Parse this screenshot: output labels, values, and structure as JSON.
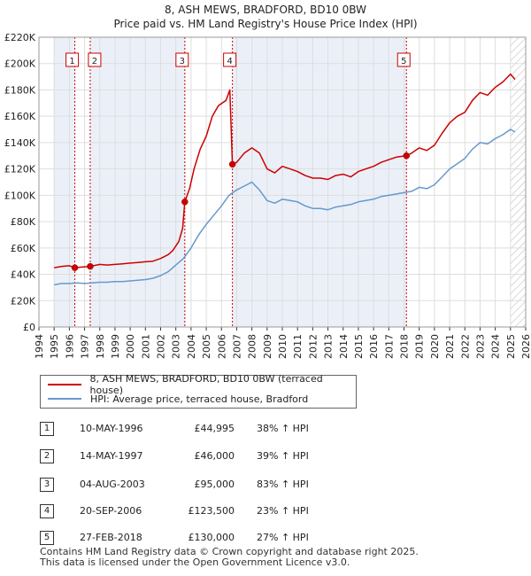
{
  "chart_data": {
    "type": "line",
    "title": "8, ASH MEWS, BRADFORD, BD10 0BW",
    "subtitle": "Price paid vs. HM Land Registry's House Price Index (HPI)",
    "xlim": [
      1994,
      2026
    ],
    "ylim": [
      0,
      220000
    ],
    "yticks": [
      0,
      20000,
      40000,
      60000,
      80000,
      100000,
      120000,
      140000,
      160000,
      180000,
      200000,
      220000
    ],
    "ytick_labels": [
      "£0",
      "£20K",
      "£40K",
      "£60K",
      "£80K",
      "£100K",
      "£120K",
      "£140K",
      "£160K",
      "£180K",
      "£200K",
      "£220K"
    ],
    "xticks": [
      "1994",
      "1995",
      "1996",
      "1997",
      "1998",
      "1999",
      "2000",
      "2001",
      "2002",
      "2003",
      "2004",
      "2005",
      "2006",
      "2007",
      "2008",
      "2009",
      "2010",
      "2011",
      "2012",
      "2013",
      "2014",
      "2015",
      "2016",
      "2017",
      "2018",
      "2019",
      "2020",
      "2021",
      "2022",
      "2023",
      "2024",
      "2025",
      "2026"
    ],
    "shaded_regions": [
      [
        1995.0,
        1996.36
      ],
      [
        1997.37,
        2003.59
      ],
      [
        2006.72,
        2018.16
      ]
    ],
    "series": [
      {
        "name": "8, ASH MEWS, BRADFORD, BD10 0BW (terraced house)",
        "color": "#cc0000",
        "points": [
          [
            1995.0,
            45000
          ],
          [
            1995.5,
            46000
          ],
          [
            1996.0,
            46500
          ],
          [
            1996.36,
            44995
          ],
          [
            1996.8,
            45500
          ],
          [
            1997.37,
            46000
          ],
          [
            1998.0,
            47500
          ],
          [
            1998.5,
            47000
          ],
          [
            1999.0,
            47500
          ],
          [
            1999.5,
            48000
          ],
          [
            2000.0,
            48500
          ],
          [
            2000.5,
            49000
          ],
          [
            2001.0,
            49500
          ],
          [
            2001.5,
            50000
          ],
          [
            2002.0,
            52000
          ],
          [
            2002.5,
            55000
          ],
          [
            2002.8,
            58000
          ],
          [
            2003.2,
            65000
          ],
          [
            2003.45,
            75000
          ],
          [
            2003.59,
            95000
          ],
          [
            2003.9,
            105000
          ],
          [
            2004.2,
            120000
          ],
          [
            2004.6,
            135000
          ],
          [
            2005.0,
            145000
          ],
          [
            2005.4,
            160000
          ],
          [
            2005.8,
            168000
          ],
          [
            2006.3,
            172000
          ],
          [
            2006.55,
            180000
          ],
          [
            2006.72,
            123500
          ],
          [
            2007.0,
            125000
          ],
          [
            2007.5,
            132000
          ],
          [
            2008.0,
            136000
          ],
          [
            2008.5,
            132000
          ],
          [
            2009.0,
            120000
          ],
          [
            2009.5,
            117000
          ],
          [
            2010.0,
            122000
          ],
          [
            2010.5,
            120000
          ],
          [
            2011.0,
            118000
          ],
          [
            2011.5,
            115000
          ],
          [
            2012.0,
            113000
          ],
          [
            2012.5,
            113000
          ],
          [
            2013.0,
            112000
          ],
          [
            2013.5,
            115000
          ],
          [
            2014.0,
            116000
          ],
          [
            2014.5,
            114000
          ],
          [
            2015.0,
            118000
          ],
          [
            2015.5,
            120000
          ],
          [
            2016.0,
            122000
          ],
          [
            2016.5,
            125000
          ],
          [
            2017.0,
            127000
          ],
          [
            2017.5,
            129000
          ],
          [
            2018.16,
            130000
          ],
          [
            2018.5,
            132000
          ],
          [
            2019.0,
            136000
          ],
          [
            2019.5,
            134000
          ],
          [
            2020.0,
            138000
          ],
          [
            2020.5,
            147000
          ],
          [
            2021.0,
            155000
          ],
          [
            2021.5,
            160000
          ],
          [
            2022.0,
            163000
          ],
          [
            2022.5,
            172000
          ],
          [
            2023.0,
            178000
          ],
          [
            2023.5,
            176000
          ],
          [
            2024.0,
            182000
          ],
          [
            2024.5,
            186000
          ],
          [
            2025.0,
            192000
          ],
          [
            2025.3,
            188000
          ]
        ]
      },
      {
        "name": "HPI: Average price, terraced house, Bradford",
        "color": "#6699cc",
        "points": [
          [
            1995.0,
            32000
          ],
          [
            1995.5,
            33000
          ],
          [
            1996.0,
            33000
          ],
          [
            1996.5,
            33500
          ],
          [
            1997.0,
            33000
          ],
          [
            1997.5,
            33500
          ],
          [
            1998.0,
            34000
          ],
          [
            1998.5,
            34000
          ],
          [
            1999.0,
            34500
          ],
          [
            1999.5,
            34500
          ],
          [
            2000.0,
            35000
          ],
          [
            2000.5,
            35500
          ],
          [
            2001.0,
            36000
          ],
          [
            2001.5,
            37000
          ],
          [
            2002.0,
            39000
          ],
          [
            2002.5,
            42000
          ],
          [
            2003.0,
            47000
          ],
          [
            2003.5,
            52000
          ],
          [
            2004.0,
            60000
          ],
          [
            2004.5,
            70000
          ],
          [
            2005.0,
            78000
          ],
          [
            2005.5,
            85000
          ],
          [
            2006.0,
            92000
          ],
          [
            2006.5,
            100000
          ],
          [
            2007.0,
            104000
          ],
          [
            2007.5,
            107000
          ],
          [
            2008.0,
            110000
          ],
          [
            2008.5,
            104000
          ],
          [
            2009.0,
            96000
          ],
          [
            2009.5,
            94000
          ],
          [
            2010.0,
            97000
          ],
          [
            2010.5,
            96000
          ],
          [
            2011.0,
            95000
          ],
          [
            2011.5,
            92000
          ],
          [
            2012.0,
            90000
          ],
          [
            2012.5,
            90000
          ],
          [
            2013.0,
            89000
          ],
          [
            2013.5,
            91000
          ],
          [
            2014.0,
            92000
          ],
          [
            2014.5,
            93000
          ],
          [
            2015.0,
            95000
          ],
          [
            2015.5,
            96000
          ],
          [
            2016.0,
            97000
          ],
          [
            2016.5,
            99000
          ],
          [
            2017.0,
            100000
          ],
          [
            2017.5,
            101000
          ],
          [
            2018.0,
            102000
          ],
          [
            2018.5,
            103000
          ],
          [
            2019.0,
            106000
          ],
          [
            2019.5,
            105000
          ],
          [
            2020.0,
            108000
          ],
          [
            2020.5,
            114000
          ],
          [
            2021.0,
            120000
          ],
          [
            2021.5,
            124000
          ],
          [
            2022.0,
            128000
          ],
          [
            2022.5,
            135000
          ],
          [
            2023.0,
            140000
          ],
          [
            2023.5,
            139000
          ],
          [
            2024.0,
            143000
          ],
          [
            2024.5,
            146000
          ],
          [
            2025.0,
            150000
          ],
          [
            2025.3,
            148000
          ]
        ]
      }
    ],
    "sales": [
      {
        "label": "1",
        "x": 1996.36,
        "y": 44995
      },
      {
        "label": "2",
        "x": 1997.37,
        "y": 46000
      },
      {
        "label": "3",
        "x": 2003.59,
        "y": 95000
      },
      {
        "label": "4",
        "x": 2006.72,
        "y": 123500
      },
      {
        "label": "5",
        "x": 2018.16,
        "y": 130000
      }
    ]
  },
  "legend": {
    "property_label": "8, ASH MEWS, BRADFORD, BD10 0BW (terraced house)",
    "hpi_label": "HPI: Average price, terraced house, Bradford"
  },
  "transactions": [
    {
      "num": "1",
      "date": "10-MAY-1996",
      "price": "£44,995",
      "hpi": "38% ↑ HPI"
    },
    {
      "num": "2",
      "date": "14-MAY-1997",
      "price": "£46,000",
      "hpi": "39% ↑ HPI"
    },
    {
      "num": "3",
      "date": "04-AUG-2003",
      "price": "£95,000",
      "hpi": "83% ↑ HPI"
    },
    {
      "num": "4",
      "date": "20-SEP-2006",
      "price": "£123,500",
      "hpi": "23% ↑ HPI"
    },
    {
      "num": "5",
      "date": "27-FEB-2018",
      "price": "£130,000",
      "hpi": "27% ↑ HPI"
    }
  ],
  "footer": {
    "line1": "Contains HM Land Registry data © Crown copyright and database right 2025.",
    "line2": "This data is licensed under the Open Government Licence v3.0."
  }
}
